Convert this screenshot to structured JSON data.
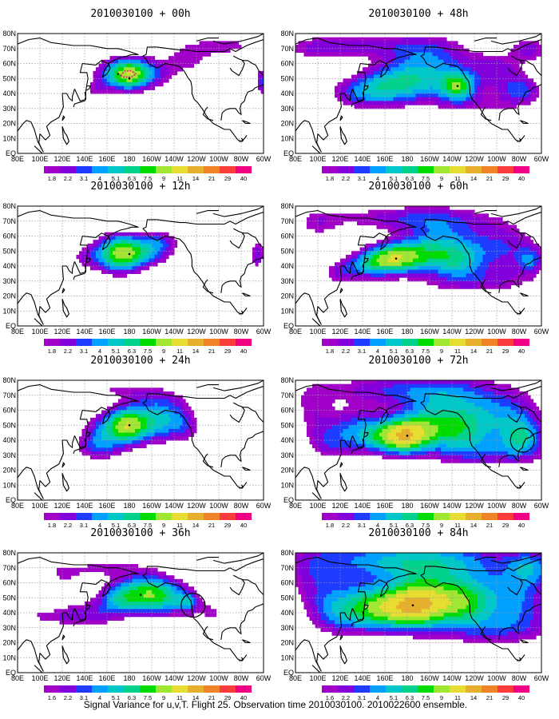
{
  "caption": "Signal Variance for u,v,T. Flight 25. Observation time 2010030100. 2010022600 ensemble.",
  "colors": {
    "scale": [
      "#a000c8",
      "#8200dc",
      "#1e3cff",
      "#00a0ff",
      "#00c8c8",
      "#00d28c",
      "#00dc00",
      "#a0e632",
      "#e6dc32",
      "#e6af2d",
      "#f08228",
      "#fa3c3c",
      "#f00082"
    ],
    "grid": "#9a9a9a",
    "coast": "#000000"
  },
  "colorbar_labels": [
    "1.8",
    "2.2",
    "3.1",
    "4",
    "5.1",
    "6.3",
    "7.5",
    "9",
    "11",
    "14",
    "21",
    "29",
    "40"
  ],
  "colorbar_labels_alt": [
    "1.6",
    "2.2",
    "3.1",
    "4",
    "5.1",
    "6.3",
    "7.5",
    "9",
    "11",
    "14",
    "21",
    "29",
    "40"
  ],
  "x_ticks": [
    "80E",
    "100E",
    "120E",
    "140E",
    "160E",
    "180",
    "160W",
    "140W",
    "120W",
    "100W",
    "80W",
    "60W"
  ],
  "y_ticks": [
    "80N",
    "70N",
    "60N",
    "50N",
    "40N",
    "30N",
    "20N",
    "10N",
    "EQ"
  ],
  "chart_data": [
    {
      "type": "heatmap",
      "title": "2010030100 + 00h",
      "forecast_hour": 0,
      "max_level": 11,
      "centers": [
        {
          "lon": 180,
          "lat": 50
        },
        {
          "lon": 170,
          "lat": 53
        }
      ],
      "circle": null
    },
    {
      "type": "heatmap",
      "title": "2010030100 + 12h",
      "forecast_hour": 12,
      "max_level": 9,
      "centers": [
        {
          "lon": 180,
          "lat": 48
        }
      ],
      "circle": null
    },
    {
      "type": "heatmap",
      "title": "2010030100 + 24h",
      "forecast_hour": 24,
      "max_level": 9,
      "centers": [
        {
          "lon": 180,
          "lat": 50
        }
      ],
      "circle": null
    },
    {
      "type": "heatmap",
      "title": "2010030100 + 36h",
      "forecast_hour": 36,
      "max_level": 7,
      "centers": [
        {
          "lon": 190,
          "lat": 52
        }
      ],
      "circle": {
        "lon": 237,
        "lat": 45
      }
    },
    {
      "type": "heatmap",
      "title": "2010030100 + 48h",
      "forecast_hour": 48,
      "max_level": 8,
      "centers": [
        {
          "lon": 225,
          "lat": 45
        }
      ],
      "circle": null
    },
    {
      "type": "heatmap",
      "title": "2010030100 + 60h",
      "forecast_hour": 60,
      "max_level": 8,
      "centers": [
        {
          "lon": 170,
          "lat": 45
        }
      ],
      "circle": null
    },
    {
      "type": "heatmap",
      "title": "2010030100 + 72h",
      "forecast_hour": 72,
      "max_level": 9,
      "centers": [
        {
          "lon": 180,
          "lat": 43
        }
      ],
      "circle": {
        "lon": 283,
        "lat": 40
      }
    },
    {
      "type": "heatmap",
      "title": "2010030100 + 84h",
      "forecast_hour": 84,
      "max_level": 9,
      "centers": [
        {
          "lon": 185,
          "lat": 45
        }
      ],
      "circle": null
    }
  ]
}
